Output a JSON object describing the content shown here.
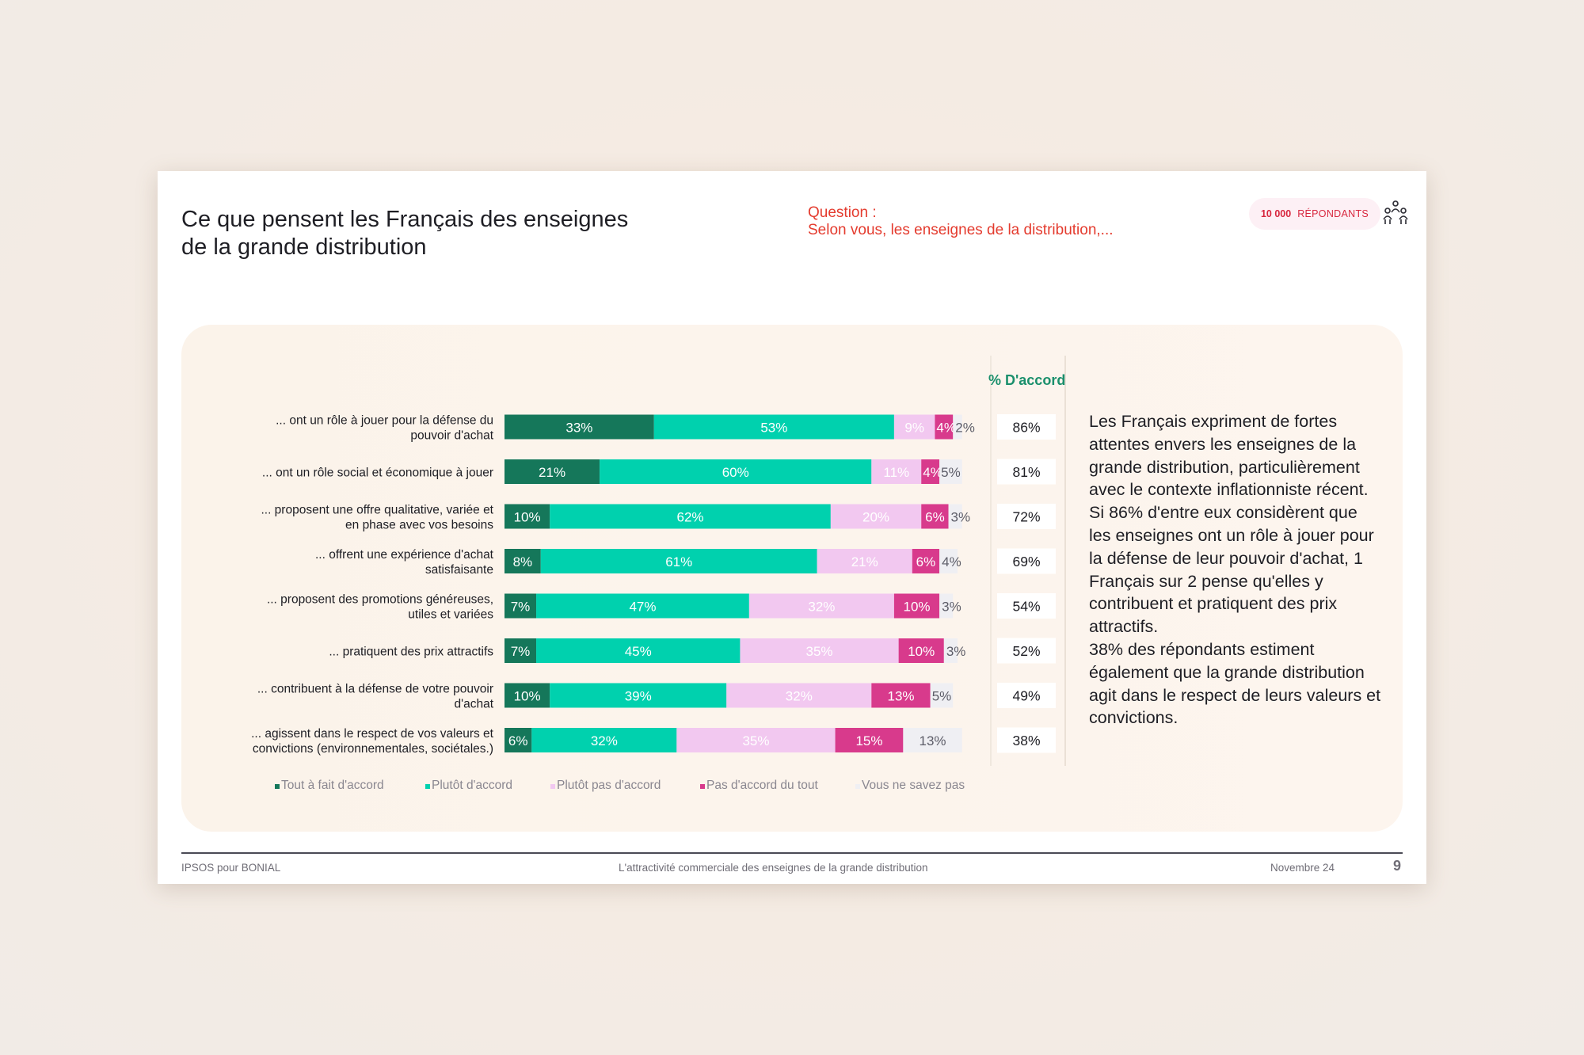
{
  "slide": {
    "title": "Ce que pensent les Français des enseignes\nde la grande distribution",
    "question_label": "Question :",
    "question_text": "Selon vous, les enseignes de la distribution,...",
    "respondents_count": "10 000",
    "respondents_label": "RÉPONDANTS"
  },
  "colors": {
    "tout_a_fait": "#15775a",
    "plutot_accord": "#00d1ae",
    "plutot_pas": "#f2c8f0",
    "pas_du_tout": "#d83a8c",
    "ne_savez_pas": "#efeff3",
    "question_red": "#e43b2e",
    "agree_green": "#1a8f6c"
  },
  "chart_data": {
    "type": "bar",
    "stacked": true,
    "orientation": "horizontal",
    "xlim": [
      0,
      100
    ],
    "categories": [
      "... ont un rôle à jouer pour la défense du pouvoir d'achat",
      "... ont un rôle social et économique à jouer",
      "... proposent une offre qualitative, variée et en phase avec vos besoins",
      "... offrent une expérience d'achat satisfaisante",
      "... proposent des promotions généreuses, utiles et variées",
      "... pratiquent des prix attractifs",
      "... contribuent à la défense de votre pouvoir d'achat",
      "... agissent dans le respect de vos valeurs et convictions (environnementales, sociétales.)"
    ],
    "series": [
      {
        "name": "Tout à fait d'accord",
        "color_key": "tout_a_fait",
        "values": [
          33,
          21,
          10,
          8,
          7,
          7,
          10,
          6
        ]
      },
      {
        "name": "Plutôt d'accord",
        "color_key": "plutot_accord",
        "values": [
          53,
          60,
          62,
          61,
          47,
          45,
          39,
          32
        ]
      },
      {
        "name": "Plutôt pas d'accord",
        "color_key": "plutot_pas",
        "values": [
          9,
          11,
          20,
          21,
          32,
          35,
          32,
          35
        ]
      },
      {
        "name": "Pas d'accord du tout",
        "color_key": "pas_du_tout",
        "values": [
          4,
          4,
          6,
          6,
          10,
          10,
          13,
          15
        ]
      },
      {
        "name": "Vous ne savez pas",
        "color_key": "ne_savez_pas",
        "values": [
          2,
          5,
          3,
          4,
          3,
          3,
          5,
          13
        ]
      }
    ],
    "agree_header": "% D'accord",
    "agree_totals": [
      "86%",
      "81%",
      "72%",
      "69%",
      "54%",
      "52%",
      "49%",
      "38%"
    ]
  },
  "summary": {
    "p1": "Les Français expriment de fortes attentes envers les enseignes de la grande distribution, particulièrement avec le contexte inflationniste récent.",
    "p2": "Si 86% d'entre eux considèrent que les enseignes ont un rôle à jouer pour la défense de leur pouvoir d'achat, 1 Français sur 2 pense qu'elles y contribuent et pratiquent des prix attractifs.",
    "p3": "38% des répondants estiment également que la grande distribution agit dans le respect de leurs valeurs et convictions."
  },
  "footer": {
    "left": "IPSOS pour BONIAL",
    "center": "L'attractivité commerciale des enseignes de la grande distribution",
    "date": "Novembre 24",
    "page": "9"
  }
}
